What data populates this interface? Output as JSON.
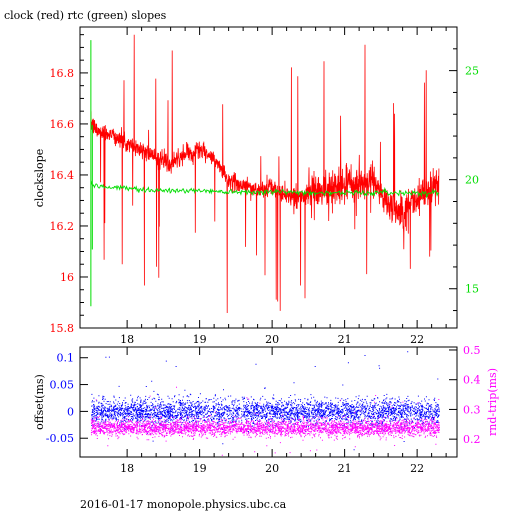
{
  "title": "clock (red) rtc (green) slopes",
  "footer": "2016-01-17  monopole.physics.ubc.ca",
  "colors": {
    "clock": "#ff0000",
    "rtc": "#00dd00",
    "offset": "#0000ff",
    "rndtrip": "#ff00ff",
    "axis": "#000000"
  },
  "chart_data": [
    {
      "type": "line",
      "title": "clock (red) rtc (green) slopes",
      "xlabel": "",
      "ylabel": "clockslope",
      "y2label": "",
      "xlim": [
        17.35,
        22.55
      ],
      "ylim": [
        15.8,
        16.98
      ],
      "y2lim": [
        13.2,
        27.0
      ],
      "xticks": [
        18,
        19,
        20,
        21,
        22
      ],
      "yticks": [
        15.8,
        16,
        16.2,
        16.4,
        16.6,
        16.8
      ],
      "ytick_labels": [
        "15.8",
        "16",
        "16.2",
        "16.4",
        "16.6",
        "16.8"
      ],
      "y2ticks": [
        15,
        20,
        25
      ],
      "series": [
        {
          "name": "clock",
          "axis": "left",
          "x": [
            17.5,
            17.6,
            17.8,
            18.0,
            18.2,
            18.4,
            18.6,
            18.8,
            19.0,
            19.2,
            19.4,
            19.6,
            19.8,
            20.0,
            20.2,
            20.4,
            20.6,
            20.8,
            21.0,
            21.2,
            21.4,
            21.6,
            21.8,
            22.0,
            22.2,
            22.3
          ],
          "y": [
            16.6,
            16.57,
            16.56,
            16.52,
            16.5,
            16.47,
            16.44,
            16.48,
            16.5,
            16.46,
            16.38,
            16.36,
            16.34,
            16.35,
            16.32,
            16.31,
            16.33,
            16.35,
            16.36,
            16.37,
            16.38,
            16.28,
            16.26,
            16.31,
            16.35,
            16.37
          ]
        },
        {
          "name": "rtc",
          "axis": "right",
          "x": [
            17.5,
            17.6,
            18.0,
            18.5,
            19.0,
            19.5,
            20.0,
            20.5,
            21.0,
            21.5,
            22.0,
            22.3
          ],
          "y": [
            19.8,
            19.7,
            19.6,
            19.5,
            19.5,
            19.45,
            19.45,
            19.4,
            19.4,
            19.4,
            19.4,
            19.4
          ]
        }
      ]
    },
    {
      "type": "scatter",
      "xlabel": "",
      "ylabel": "offset(ms)",
      "y2label": "rnd-trip(ms)",
      "xlim": [
        17.35,
        22.55
      ],
      "ylim": [
        -0.085,
        0.12
      ],
      "y2lim": [
        0.14,
        0.51
      ],
      "xticks": [
        18,
        19,
        20,
        21,
        22
      ],
      "yticks": [
        -0.05,
        0,
        0.05,
        0.1
      ],
      "ytick_labels": [
        "-0.05",
        "0",
        "0.05",
        "0.1"
      ],
      "y2ticks": [
        0.2,
        0.3,
        0.4,
        0.5
      ],
      "y2tick_labels": [
        "0.2",
        "0.3",
        "0.4",
        "0.5"
      ],
      "series": [
        {
          "name": "offset",
          "axis": "left",
          "x_range": [
            17.5,
            22.3
          ],
          "y_center": 0.0,
          "y_spread": 0.022
        },
        {
          "name": "rnd-trip",
          "axis": "right",
          "x_range": [
            17.5,
            22.3
          ],
          "y_center": 0.24,
          "y_spread": 0.025
        }
      ]
    }
  ]
}
